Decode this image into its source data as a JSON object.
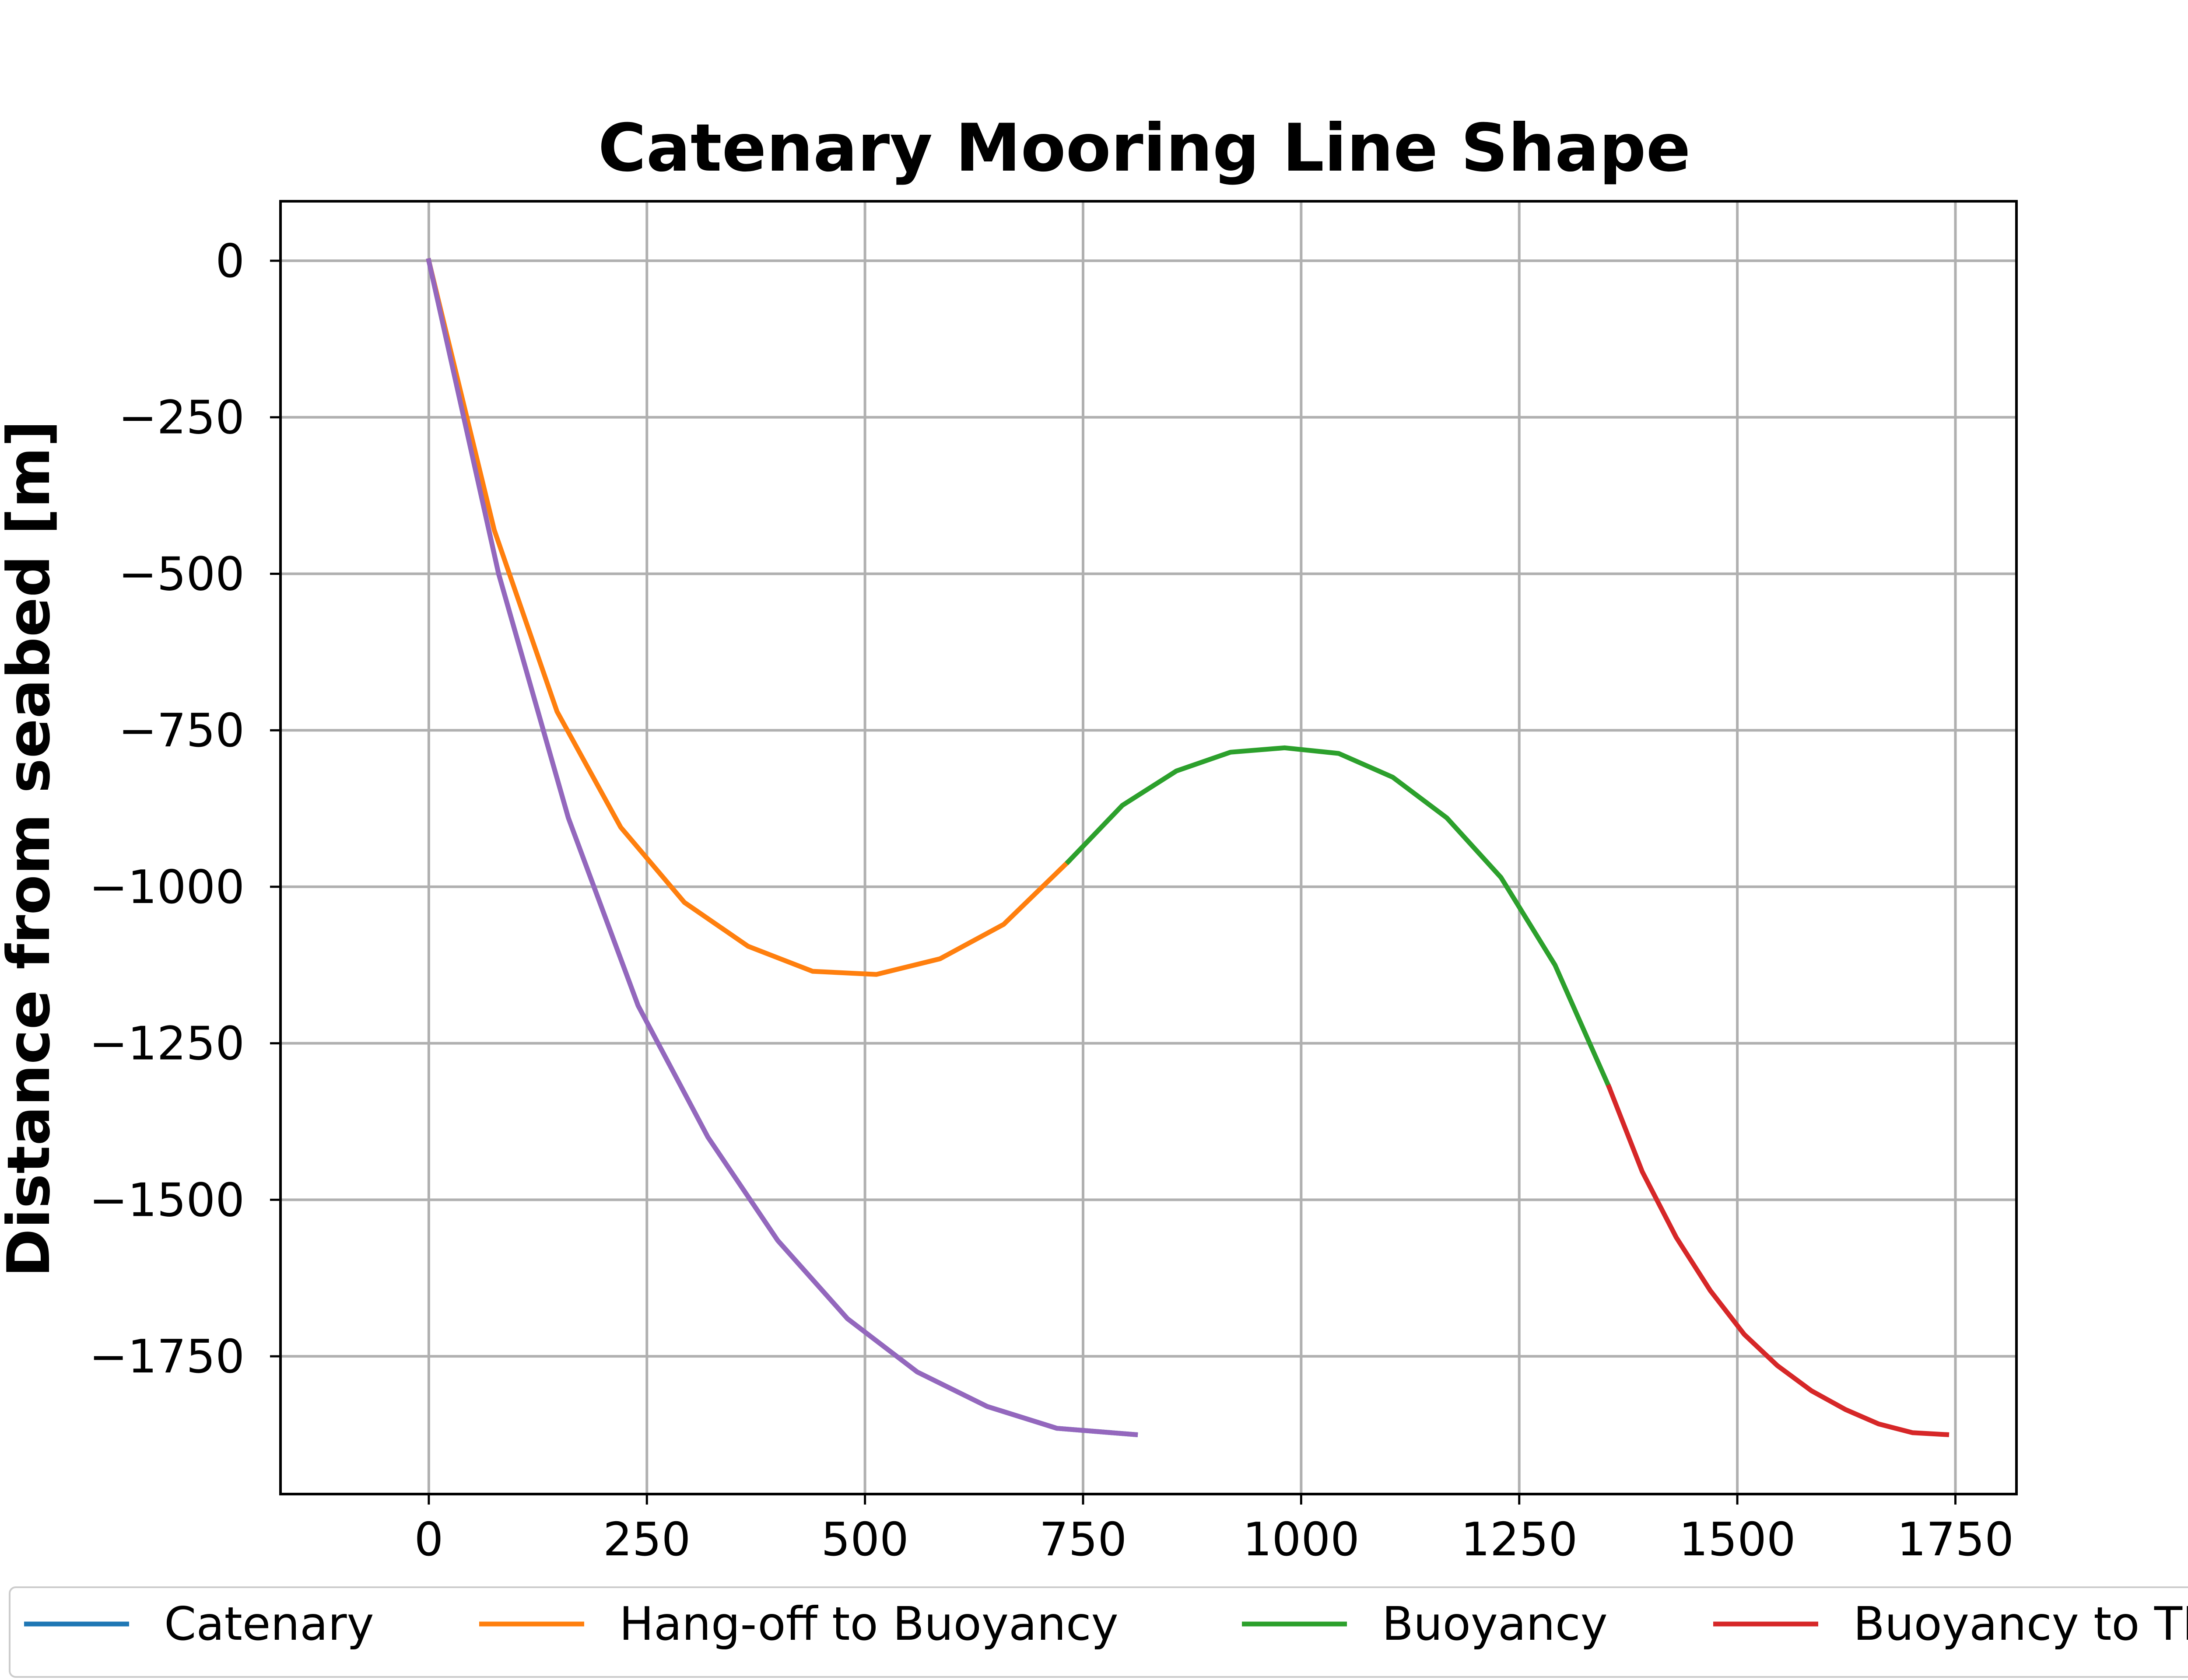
{
  "chart_data": {
    "type": "line",
    "title": "Catenary Mooring Line Shape",
    "xlabel": "",
    "ylabel": "Distance from seabed [m]",
    "xlim": [
      -170,
      1820
    ],
    "ylim": [
      -1970,
      95
    ],
    "x_ticks": [
      0,
      250,
      500,
      750,
      1000,
      1250,
      1500,
      1750
    ],
    "y_ticks": [
      0,
      -250,
      -500,
      -750,
      -1000,
      -1250,
      -1500,
      -1750
    ],
    "x_tick_labels": [
      "0",
      "250",
      "500",
      "750",
      "1000",
      "1250",
      "1500",
      "1750"
    ],
    "y_tick_labels": [
      "0",
      "−250",
      "−500",
      "−750",
      "−1000",
      "−1250",
      "−1500",
      "−1750"
    ],
    "grid": true,
    "legend_placement": "bottom",
    "series": [
      {
        "name": "Catenary",
        "color": "#1f77b4",
        "x": [
          0,
          80,
          160,
          240,
          320,
          400,
          480,
          560,
          640,
          720,
          810
        ],
        "y": [
          0,
          -500,
          -890,
          -1190,
          -1400,
          -1565,
          -1690,
          -1775,
          -1830,
          -1865,
          -1875
        ]
      },
      {
        "name": "Hang-off to Buoyancy",
        "color": "#ff7f0e",
        "x": [
          0,
          75,
          147,
          220,
          293,
          366,
          440,
          513,
          586,
          659,
          733
        ],
        "y": [
          0,
          -430,
          -720,
          -905,
          -1025,
          -1095,
          -1135,
          -1140,
          -1115,
          -1060,
          -960
        ]
      },
      {
        "name": "Buoyancy",
        "color": "#2ca02c",
        "x": [
          733,
          795,
          857,
          919,
          981,
          1043,
          1105,
          1167,
          1229,
          1291,
          1353
        ],
        "y": [
          -960,
          -870,
          -815,
          -785,
          -778,
          -787,
          -825,
          -890,
          -985,
          -1125,
          -1320
        ]
      },
      {
        "name": "Buoyancy to TDP",
        "color": "#d62728",
        "x": [
          1353,
          1391,
          1430,
          1469,
          1508,
          1546,
          1585,
          1624,
          1662,
          1701,
          1740
        ],
        "y": [
          -1320,
          -1455,
          -1560,
          -1645,
          -1715,
          -1765,
          -1805,
          -1835,
          -1858,
          -1872,
          -1875
        ]
      },
      {
        "color": "#9467bd",
        "x": [
          0,
          80,
          160,
          240,
          320,
          400,
          480,
          560,
          640,
          720,
          810
        ],
        "y": [
          0,
          -500,
          -890,
          -1190,
          -1400,
          -1565,
          -1690,
          -1775,
          -1830,
          -1865,
          -1875
        ]
      }
    ]
  }
}
